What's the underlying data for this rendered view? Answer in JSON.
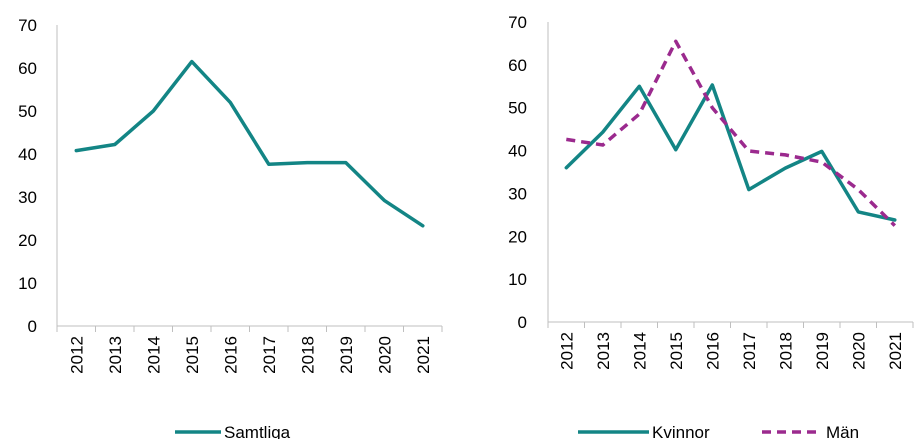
{
  "colors": {
    "teal": "#138585",
    "purple": "#9B2A8E",
    "axis": "#BFBFBF"
  },
  "chart_data": [
    {
      "type": "line",
      "categories": [
        "2012",
        "2013",
        "2014",
        "2015",
        "2016",
        "2017",
        "2018",
        "2019",
        "2020",
        "2021"
      ],
      "ylim": [
        0,
        70
      ],
      "yticks": [
        0,
        10,
        20,
        30,
        40,
        50,
        60,
        70
      ],
      "grid": false,
      "legend": "bottom",
      "series": [
        {
          "name": "Samtliga",
          "color": "#138585",
          "dash": "solid",
          "values": [
            40.8,
            42.2,
            50.0,
            61.5,
            52.0,
            37.6,
            38.0,
            38.0,
            29.2,
            23.3
          ]
        }
      ]
    },
    {
      "type": "line",
      "categories": [
        "2012",
        "2013",
        "2014",
        "2015",
        "2016",
        "2017",
        "2018",
        "2019",
        "2020",
        "2021"
      ],
      "ylim": [
        0,
        70
      ],
      "yticks": [
        0,
        10,
        20,
        30,
        40,
        50,
        60,
        70
      ],
      "grid": false,
      "legend": "bottom",
      "series": [
        {
          "name": "Kvinnor",
          "color": "#138585",
          "dash": "solid",
          "values": [
            36.0,
            44.3,
            55.0,
            40.2,
            55.3,
            30.9,
            35.9,
            39.8,
            25.7,
            23.8
          ]
        },
        {
          "name": "Män",
          "color": "#9B2A8E",
          "dash": "dashed",
          "values": [
            42.6,
            41.3,
            48.5,
            65.5,
            50.0,
            39.9,
            39.0,
            37.3,
            30.9,
            22.5
          ]
        }
      ]
    }
  ]
}
